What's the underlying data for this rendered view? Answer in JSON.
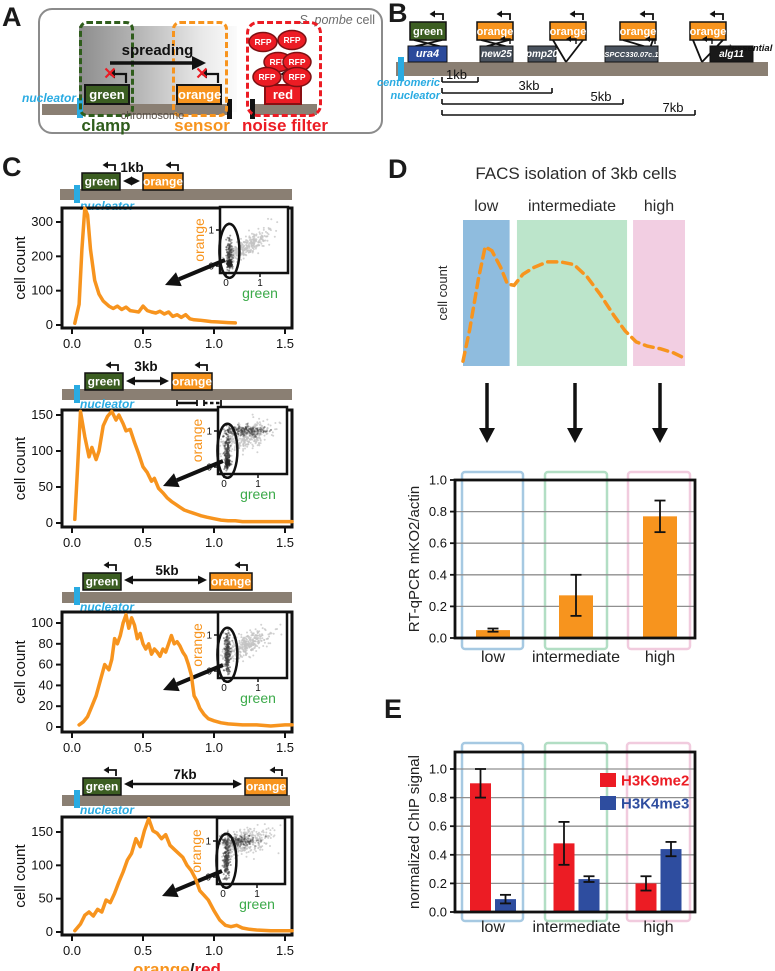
{
  "colors": {
    "orange": "#F7941E",
    "red": "#EC1C24",
    "green_box": "#3C5E22",
    "green_label": "#2F5D1C",
    "green_axis": "#3BAA49",
    "blue_gene": "#2B4A9B",
    "blue_bar": "#2E4D9F",
    "cyan": "#29ABE2",
    "chromosome": "#8A7F73",
    "slate_gene": "#49525E",
    "black_gene": "#191919",
    "facs_blue": "#8FBCDE",
    "facs_green": "#BCE5CB",
    "facs_pink": "#F2CEE2",
    "frame_blue": "#A6C9E2",
    "frame_green": "#B2DEC4",
    "frame_pink": "#F1CBDE",
    "scatter_gray": "#C3C3C3",
    "scatter_dark": "#404040",
    "ink": "#111111"
  },
  "panelA": {
    "letter": "A",
    "cell_italic": "S. pombe",
    "cell_rest": " cell",
    "spreading": "spreading",
    "gene_green": "green",
    "gene_orange": "orange",
    "gene_red": "red",
    "rfp": "RFP",
    "rfp_count": 6,
    "nucleator": "nucleator",
    "chromosome": "chromosome",
    "clamp": "clamp",
    "sensor": "sensor",
    "noise_filter": "noise filter"
  },
  "panelB": {
    "letter": "B",
    "nucleator_label": [
      "centromeric",
      "nucleator"
    ],
    "essential_note": "*essential",
    "constructs": [
      {
        "reporter": "green",
        "gene": "ura4",
        "gene_style": "blue",
        "connector": "x"
      },
      {
        "reporter": "orange",
        "gene": "new25",
        "gene_style": "slate",
        "connector": "x"
      },
      {
        "reporter": "orange",
        "gene": "pmp20",
        "gene_style": "slate",
        "connector": "v-right"
      },
      {
        "reporter": "orange",
        "gene": "SPCC330.07c.1",
        "gene_style": "slate",
        "connector": "v"
      },
      {
        "reporter": "orange",
        "gene": "alg11",
        "gene_style": "black",
        "connector": "v-left",
        "note": "*essential"
      }
    ],
    "distances": [
      "1kb",
      "3kb",
      "5kb",
      "7kb"
    ]
  },
  "panelC": {
    "letter": "C",
    "rows": [
      {
        "distance": "1kb",
        "green": "green",
        "orange": "orange",
        "nucleator": "nucleator"
      },
      {
        "distance": "3kb",
        "green": "green",
        "orange": "orange",
        "nucleator": "nucleator"
      },
      {
        "distance": "5kb",
        "green": "green",
        "orange": "orange",
        "nucleator": "nucleator"
      },
      {
        "distance": "7kb",
        "green": "green",
        "orange": "orange",
        "nucleator": "nucleator"
      }
    ]
  },
  "panelD": {
    "letter": "D",
    "cell_count": "cell count"
  },
  "panelE": {
    "letter": "E"
  },
  "chart_data": [
    {
      "id": "hist_1kb",
      "type": "line",
      "distance": "1kb",
      "ylabel": "cell count",
      "xlim": [
        0,
        1.55
      ],
      "ylim": [
        0,
        350
      ],
      "xticks": [
        0,
        0.5,
        1,
        1.5
      ],
      "xticklabels": [
        "0.0",
        "0.5",
        "1.0",
        "1.5"
      ],
      "yticks": [
        0,
        100,
        200,
        300
      ],
      "x": [
        0.02,
        0.05,
        0.07,
        0.09,
        0.11,
        0.13,
        0.16,
        0.19,
        0.22,
        0.26,
        0.29,
        0.32,
        0.35,
        0.38,
        0.41,
        0.44,
        0.47,
        0.5,
        0.53,
        0.56,
        0.59,
        0.62,
        0.65,
        0.68,
        0.71,
        0.74,
        0.77,
        0.8,
        0.83,
        0.86,
        0.9,
        0.94,
        0.98,
        1.02,
        1.06,
        1.1,
        1.15
      ],
      "y": [
        5,
        60,
        220,
        340,
        320,
        220,
        130,
        90,
        70,
        55,
        48,
        55,
        45,
        52,
        42,
        40,
        38,
        55,
        42,
        38,
        35,
        40,
        32,
        38,
        25,
        30,
        22,
        30,
        18,
        15,
        14,
        12,
        10,
        9,
        8,
        7,
        6
      ],
      "inset": {
        "xlabel": "green",
        "ylabel": "orange",
        "xticks": [
          0,
          1
        ],
        "yticks": [
          0,
          1
        ],
        "seed": 11,
        "clusters": [
          {
            "n": 320,
            "cx": 0.55,
            "cy": 0.5,
            "sx": 0.33,
            "sy": 0.3,
            "corr": 0.55,
            "color": "#C3C3C3",
            "op": 0.75,
            "r": 1.0
          },
          {
            "n": 130,
            "cx": 0.1,
            "cy": 0.35,
            "sx": 0.045,
            "sy": 0.28,
            "corr": 0,
            "color": "#404040",
            "op": 0.5,
            "r": 1.0
          },
          {
            "n": 90,
            "cx": 0.1,
            "cy": 0.08,
            "sx": 0.04,
            "sy": 0.05,
            "corr": 0,
            "color": "#222222",
            "op": 0.55,
            "r": 1.1
          }
        ],
        "gate": {
          "cx": 0.1,
          "cy": 0.42
        }
      }
    },
    {
      "id": "hist_3kb",
      "type": "line",
      "distance": "3kb",
      "ylabel": "cell count",
      "xlim": [
        0,
        1.55
      ],
      "ylim": [
        0,
        160
      ],
      "xticks": [
        0,
        0.5,
        1,
        1.5
      ],
      "xticklabels": [
        "0.0",
        "0.5",
        "1.0",
        "1.5"
      ],
      "yticks": [
        0,
        50,
        100,
        150
      ],
      "x": [
        0.02,
        0.04,
        0.06,
        0.09,
        0.12,
        0.14,
        0.17,
        0.19,
        0.22,
        0.25,
        0.28,
        0.31,
        0.33,
        0.36,
        0.38,
        0.41,
        0.44,
        0.47,
        0.5,
        0.53,
        0.56,
        0.58,
        0.61,
        0.64,
        0.67,
        0.7,
        0.73,
        0.76,
        0.79,
        0.82,
        0.85,
        0.88,
        0.91,
        0.95,
        1.0,
        1.05,
        1.1,
        1.15,
        1.2,
        1.3,
        1.4,
        1.5,
        1.55
      ],
      "y": [
        5,
        80,
        155,
        120,
        92,
        105,
        88,
        100,
        135,
        148,
        155,
        143,
        150,
        138,
        128,
        130,
        112,
        96,
        78,
        70,
        58,
        62,
        48,
        42,
        35,
        30,
        26,
        22,
        18,
        16,
        14,
        12,
        10,
        8,
        6,
        4,
        3,
        3,
        2,
        2,
        2,
        2,
        2
      ],
      "inset": {
        "xlabel": "green",
        "ylabel": "orange",
        "xticks": [
          0,
          1
        ],
        "yticks": [
          0,
          1
        ],
        "seed": 22,
        "clusters": [
          {
            "n": 360,
            "cx": 0.65,
            "cy": 0.85,
            "sx": 0.4,
            "sy": 0.3,
            "corr": 0.45,
            "color": "#C3C3C3",
            "op": 0.75,
            "r": 1.0
          },
          {
            "n": 200,
            "cx": 0.55,
            "cy": 1.0,
            "sx": 0.35,
            "sy": 0.07,
            "corr": 0,
            "color": "#404040",
            "op": 0.45,
            "r": 1.0
          },
          {
            "n": 170,
            "cx": 0.1,
            "cy": 0.45,
            "sx": 0.045,
            "sy": 0.3,
            "corr": 0,
            "color": "#404040",
            "op": 0.5,
            "r": 1.0
          },
          {
            "n": 60,
            "cx": 0.1,
            "cy": 0.12,
            "sx": 0.04,
            "sy": 0.06,
            "corr": 0,
            "color": "#222222",
            "op": 0.55,
            "r": 1.1
          }
        ],
        "gate": {
          "cx": 0.1,
          "cy": 0.45
        }
      }
    },
    {
      "id": "hist_5kb",
      "type": "line",
      "distance": "5kb",
      "ylabel": "cell count",
      "xlim": [
        0,
        1.55
      ],
      "ylim": [
        0,
        115
      ],
      "xticks": [
        0,
        0.5,
        1,
        1.5
      ],
      "xticklabels": [
        "0.0",
        "0.5",
        "1.0",
        "1.5"
      ],
      "yticks": [
        0,
        20,
        40,
        60,
        80,
        100
      ],
      "x": [
        0.05,
        0.08,
        0.11,
        0.14,
        0.17,
        0.2,
        0.23,
        0.26,
        0.28,
        0.3,
        0.32,
        0.34,
        0.36,
        0.38,
        0.4,
        0.42,
        0.44,
        0.46,
        0.48,
        0.5,
        0.52,
        0.54,
        0.56,
        0.58,
        0.6,
        0.62,
        0.64,
        0.66,
        0.68,
        0.7,
        0.72,
        0.74,
        0.76,
        0.78,
        0.8,
        0.82,
        0.84,
        0.86,
        0.88,
        0.9,
        0.93,
        0.96,
        1.0,
        1.05,
        1.1,
        1.2,
        1.3,
        1.4,
        1.5,
        1.55
      ],
      "y": [
        2,
        5,
        10,
        20,
        30,
        45,
        60,
        55,
        65,
        85,
        80,
        88,
        100,
        108,
        95,
        105,
        98,
        85,
        90,
        80,
        75,
        80,
        70,
        75,
        72,
        68,
        75,
        72,
        80,
        88,
        80,
        82,
        78,
        72,
        68,
        60,
        50,
        30,
        25,
        18,
        12,
        8,
        6,
        4,
        3,
        2,
        2,
        1,
        2,
        2
      ],
      "inset": {
        "xlabel": "green",
        "ylabel": "orange",
        "xticks": [
          0,
          1
        ],
        "yticks": [
          0,
          1
        ],
        "seed": 33,
        "clusters": [
          {
            "n": 340,
            "cx": 0.6,
            "cy": 0.7,
            "sx": 0.38,
            "sy": 0.3,
            "corr": 0.5,
            "color": "#C3C3C3",
            "op": 0.75,
            "r": 1.0
          },
          {
            "n": 210,
            "cx": 0.1,
            "cy": 0.45,
            "sx": 0.045,
            "sy": 0.3,
            "corr": 0,
            "color": "#404040",
            "op": 0.5,
            "r": 1.0
          }
        ],
        "gate": {
          "cx": 0.1,
          "cy": 0.45
        }
      }
    },
    {
      "id": "hist_7kb",
      "type": "line",
      "distance": "7kb",
      "ylabel": "cell count",
      "xlim": [
        0,
        1.55
      ],
      "ylim": [
        0,
        180
      ],
      "xticks": [
        0,
        0.5,
        1,
        1.5
      ],
      "xticklabels": [
        "0.0",
        "0.5",
        "1.0",
        "1.5"
      ],
      "yticks": [
        0,
        50,
        100,
        150
      ],
      "xlabel_parts": [
        {
          "text": "orange",
          "color": "#F7941E"
        },
        {
          "text": "/",
          "color": "#1a1a1a"
        },
        {
          "text": "red",
          "color": "#EC1C24"
        }
      ],
      "x": [
        0.02,
        0.06,
        0.09,
        0.12,
        0.15,
        0.18,
        0.21,
        0.24,
        0.27,
        0.3,
        0.33,
        0.36,
        0.39,
        0.42,
        0.45,
        0.48,
        0.51,
        0.54,
        0.57,
        0.6,
        0.63,
        0.66,
        0.69,
        0.72,
        0.75,
        0.78,
        0.81,
        0.84,
        0.87,
        0.9,
        0.93,
        0.96,
        1.0,
        1.04,
        1.08,
        1.12,
        1.16,
        1.2,
        1.25,
        1.3,
        1.4,
        1.5,
        1.55
      ],
      "y": [
        2,
        12,
        25,
        30,
        24,
        34,
        30,
        48,
        44,
        58,
        75,
        90,
        108,
        118,
        140,
        128,
        152,
        170,
        152,
        148,
        140,
        146,
        130,
        124,
        118,
        112,
        100,
        92,
        80,
        62,
        55,
        48,
        32,
        18,
        10,
        8,
        10,
        6,
        4,
        3,
        2,
        2,
        2
      ],
      "inset": {
        "xlabel": "green",
        "ylabel": "orange",
        "xticks": [
          0,
          1
        ],
        "yticks": [
          0,
          1
        ],
        "seed": 44,
        "clusters": [
          {
            "n": 360,
            "cx": 0.6,
            "cy": 0.95,
            "sx": 0.4,
            "sy": 0.25,
            "corr": 0.35,
            "color": "#C3C3C3",
            "op": 0.75,
            "r": 1.0
          },
          {
            "n": 150,
            "cx": 0.45,
            "cy": 1.0,
            "sx": 0.28,
            "sy": 0.07,
            "corr": 0,
            "color": "#404040",
            "op": 0.45,
            "r": 1.0
          },
          {
            "n": 200,
            "cx": 0.1,
            "cy": 0.5,
            "sx": 0.045,
            "sy": 0.33,
            "corr": 0,
            "color": "#404040",
            "op": 0.5,
            "r": 1.0
          }
        ],
        "gate": {
          "cx": 0.1,
          "cy": 0.45
        }
      }
    },
    {
      "id": "facs_sketch",
      "type": "sketch",
      "title": "FACS isolation of 3kb cells",
      "ylabel": "cell count",
      "regions": [
        {
          "label": "low",
          "color": "#8FBCDE",
          "x0": 0,
          "x1": 0.21
        },
        {
          "label": "intermediate",
          "color": "#BCE5CB",
          "x0": 0.243,
          "x1": 0.739
        },
        {
          "label": "high",
          "color": "#F2CEE2",
          "x0": 0.766,
          "x1": 1
        }
      ],
      "x": [
        0.0,
        0.03,
        0.07,
        0.1,
        0.13,
        0.17,
        0.2,
        0.23,
        0.27,
        0.32,
        0.38,
        0.44,
        0.5,
        0.56,
        0.62,
        0.68,
        0.73,
        0.78,
        0.83,
        0.89,
        0.95,
        1.0
      ],
      "y": [
        0.02,
        0.25,
        0.62,
        0.85,
        0.82,
        0.7,
        0.58,
        0.57,
        0.65,
        0.7,
        0.74,
        0.74,
        0.72,
        0.63,
        0.5,
        0.35,
        0.24,
        0.16,
        0.13,
        0.11,
        0.08,
        0.04
      ]
    },
    {
      "id": "rt_qpcr",
      "type": "bar",
      "ylabel": "RT-qPCR  mKO2/actin",
      "categories": [
        "low",
        "intermediate",
        "high"
      ],
      "values": [
        0.05,
        0.27,
        0.77
      ],
      "errors": [
        0.01,
        0.13,
        0.1
      ],
      "bar_color": "#F7941E",
      "yticks": [
        0,
        0.2,
        0.4,
        0.6,
        0.8,
        1
      ],
      "yticklabels": [
        "0.0",
        "0.2",
        "0.4",
        "0.6",
        "0.8",
        "1.0"
      ],
      "ylim": [
        0,
        1
      ],
      "grid": true
    },
    {
      "id": "chip",
      "type": "bar",
      "ylabel": "normalized ChIP signal",
      "categories": [
        "low",
        "intermediate",
        "high"
      ],
      "series": [
        {
          "name": "H3K9me2",
          "color": "#EC1C24",
          "values": [
            0.9,
            0.48,
            0.2
          ],
          "errors": [
            0.1,
            0.15,
            0.05
          ]
        },
        {
          "name": "H3K4me3",
          "color": "#2E4D9F",
          "values": [
            0.09,
            0.23,
            0.44
          ],
          "errors": [
            0.03,
            0.02,
            0.05
          ]
        }
      ],
      "legend": [
        {
          "label": "H3K9me2",
          "color": "#EC1C24"
        },
        {
          "label": "H3K4me3",
          "color": "#2E4D9F"
        }
      ],
      "yticks": [
        0,
        0.2,
        0.4,
        0.6,
        0.8,
        1
      ],
      "yticklabels": [
        "0.0",
        "0.2",
        "0.4",
        "0.6",
        "0.8",
        "1.0"
      ],
      "ylim": [
        0,
        1
      ],
      "grid": true,
      "legend_position": "upper right"
    }
  ]
}
